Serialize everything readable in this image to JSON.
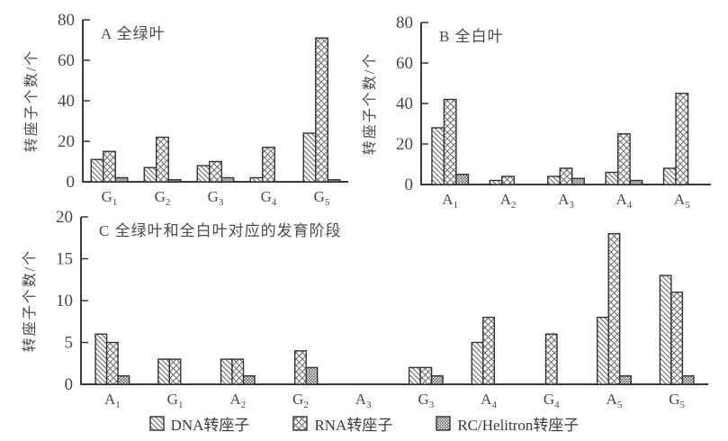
{
  "figure": {
    "legend": {
      "items": [
        {
          "key": "dna",
          "label": "DNA转座子"
        },
        {
          "key": "rna",
          "label": "RNA转座子"
        },
        {
          "key": "rc",
          "label": "RC/Helitron转座子"
        }
      ]
    }
  },
  "chart_data": [
    {
      "id": "A",
      "type": "bar",
      "title": "A 全绿叶",
      "ylabel": "转座子个数/个",
      "ylim": [
        0,
        80
      ],
      "yticks": [
        0,
        20,
        40,
        60,
        80
      ],
      "grid": false,
      "legend_position": "bottom-shared",
      "categories": [
        {
          "base": "G",
          "sub": "1"
        },
        {
          "base": "G",
          "sub": "2"
        },
        {
          "base": "G",
          "sub": "3"
        },
        {
          "base": "G",
          "sub": "4"
        },
        {
          "base": "G",
          "sub": "5"
        }
      ],
      "series": [
        {
          "name": "DNA转座子",
          "key": "dna",
          "values": [
            11,
            7,
            8,
            2,
            24
          ]
        },
        {
          "name": "RNA转座子",
          "key": "rna",
          "values": [
            15,
            22,
            10,
            17,
            71
          ]
        },
        {
          "name": "RC/Helitron转座子",
          "key": "rc",
          "values": [
            2,
            1,
            2,
            0,
            1
          ]
        }
      ]
    },
    {
      "id": "B",
      "type": "bar",
      "title": "B 全白叶",
      "ylabel": "转座子个数/个",
      "ylim": [
        0,
        80
      ],
      "yticks": [
        0,
        20,
        40,
        60,
        80
      ],
      "grid": false,
      "legend_position": "bottom-shared",
      "categories": [
        {
          "base": "A",
          "sub": "1"
        },
        {
          "base": "A",
          "sub": "2"
        },
        {
          "base": "A",
          "sub": "3"
        },
        {
          "base": "A",
          "sub": "4"
        },
        {
          "base": "A",
          "sub": "5"
        }
      ],
      "series": [
        {
          "name": "DNA转座子",
          "key": "dna",
          "values": [
            28,
            2,
            4,
            6,
            8
          ]
        },
        {
          "name": "RNA转座子",
          "key": "rna",
          "values": [
            42,
            4,
            8,
            25,
            45
          ]
        },
        {
          "name": "RC/Helitron转座子",
          "key": "rc",
          "values": [
            5,
            0,
            3,
            2,
            0
          ]
        }
      ]
    },
    {
      "id": "C",
      "type": "bar",
      "title": "C 全绿叶和全白叶对应的发育阶段",
      "ylabel": "转座子个数/个",
      "ylim": [
        0,
        20
      ],
      "yticks": [
        0,
        5,
        10,
        15,
        20
      ],
      "grid": false,
      "legend_position": "bottom-shared",
      "categories": [
        {
          "base": "A",
          "sub": "1"
        },
        {
          "base": "G",
          "sub": "1"
        },
        {
          "base": "A",
          "sub": "2"
        },
        {
          "base": "G",
          "sub": "2"
        },
        {
          "base": "A",
          "sub": "3"
        },
        {
          "base": "G",
          "sub": "3"
        },
        {
          "base": "A",
          "sub": "4"
        },
        {
          "base": "G",
          "sub": "4"
        },
        {
          "base": "A",
          "sub": "5"
        },
        {
          "base": "G",
          "sub": "5"
        }
      ],
      "series": [
        {
          "name": "DNA转座子",
          "key": "dna",
          "values": [
            6,
            3,
            3,
            0,
            0,
            2,
            5,
            0,
            8,
            13
          ]
        },
        {
          "name": "RNA转座子",
          "key": "rna",
          "values": [
            5,
            3,
            3,
            4,
            0,
            2,
            8,
            6,
            18,
            11
          ]
        },
        {
          "name": "RC/Helitron转座子",
          "key": "rc",
          "values": [
            1,
            0,
            1,
            2,
            0,
            1,
            0,
            0,
            1,
            1
          ]
        }
      ]
    }
  ]
}
